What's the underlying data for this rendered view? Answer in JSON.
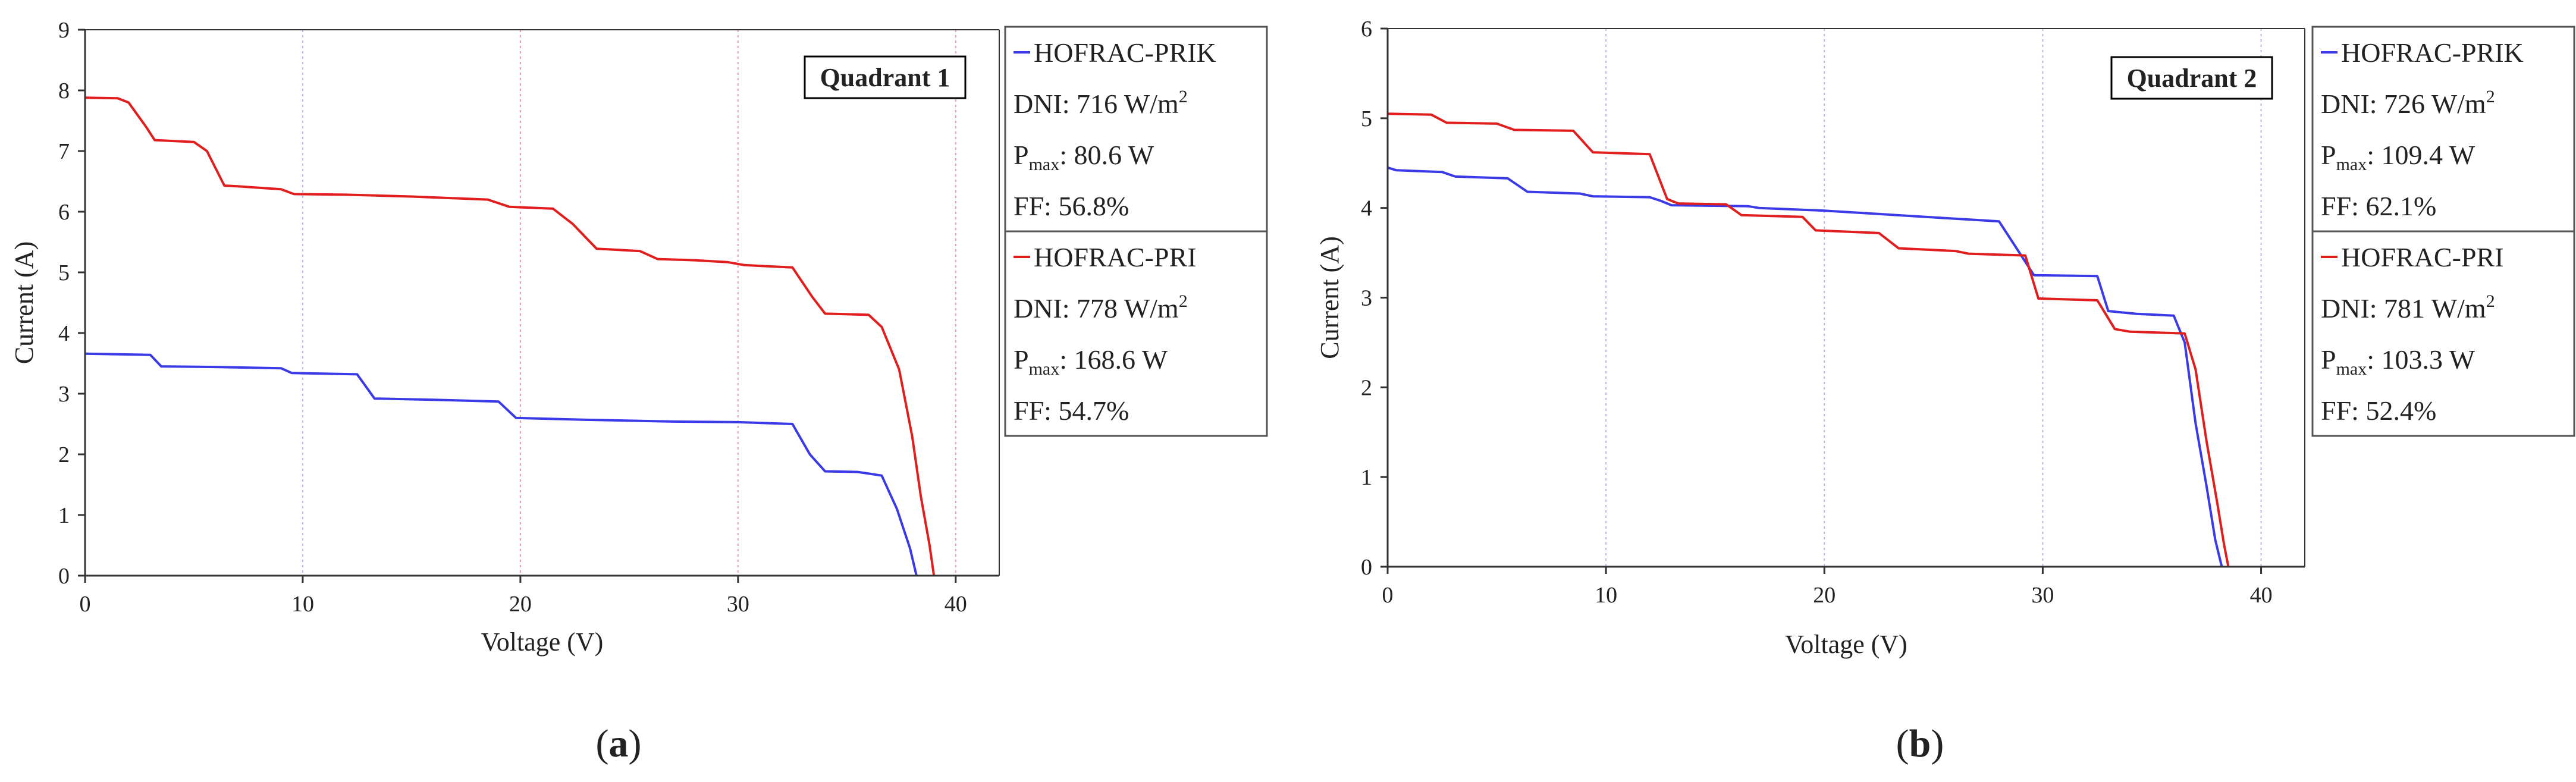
{
  "colors": {
    "prik": "#3a3ae6",
    "pri": "#e01e1e",
    "grid_prik": "#b9b9e8",
    "grid_pri": "#e89c9c",
    "axis": "#333333"
  },
  "chart_data": [
    {
      "type": "line",
      "panel": "a",
      "caption": {
        "open": "(",
        "letter": "a",
        "close": ")"
      },
      "quadrant_label": "Quadrant 1",
      "xlabel": "Voltage (V)",
      "ylabel": "Current (A)",
      "xlim": [
        0,
        42
      ],
      "ylim": [
        0,
        9
      ],
      "xticks": [
        "0",
        "10",
        "20",
        "30",
        "40"
      ],
      "xtick_values": [
        0,
        10,
        20,
        30,
        40
      ],
      "yticks": [
        "0",
        "1",
        "2",
        "3",
        "4",
        "5",
        "6",
        "7",
        "8",
        "9"
      ],
      "ytick_values": [
        0,
        1,
        2,
        3,
        4,
        5,
        6,
        7,
        8,
        9
      ],
      "grid_x": [
        {
          "x": 10,
          "color": "prik"
        },
        {
          "x": 20,
          "color": "pri"
        },
        {
          "x": 30,
          "color": "pri"
        },
        {
          "x": 40,
          "color": "pri"
        }
      ],
      "legend": [
        {
          "series": "HOFRAC-PRIK",
          "dni": "DNI: 716 W/m",
          "dni_sup": "2",
          "pmax_label": "P",
          "pmax_sub": "max",
          "pmax_value": ": 80.6 W",
          "ff": "FF: 56.8%"
        },
        {
          "series": "HOFRAC-PRI",
          "dni": "DNI: 778 W/m",
          "dni_sup": "2",
          "pmax_label": "P",
          "pmax_sub": "max",
          "pmax_value": ": 168.6 W",
          "ff": "FF: 54.7%"
        }
      ],
      "series": [
        {
          "name": "HOFRAC-PRIK",
          "color": "prik",
          "x": [
            0,
            3.0,
            3.5,
            6,
            9.0,
            9.5,
            12.5,
            13.3,
            16,
            19.0,
            19.8,
            23,
            27,
            30,
            32.5,
            33.3,
            34,
            35.5,
            36.6,
            37.3,
            37.9,
            38.2
          ],
          "y": [
            3.66,
            3.64,
            3.45,
            3.44,
            3.42,
            3.34,
            3.32,
            2.92,
            2.9,
            2.87,
            2.6,
            2.57,
            2.54,
            2.53,
            2.5,
            2.0,
            1.72,
            1.71,
            1.65,
            1.1,
            0.45,
            0
          ]
        },
        {
          "name": "HOFRAC-PRI",
          "color": "pri",
          "x": [
            0,
            1.5,
            2.0,
            2.8,
            3.2,
            5.0,
            5.6,
            6.4,
            7,
            9.0,
            9.6,
            12,
            15,
            18.5,
            19.5,
            21.5,
            22.4,
            23.5,
            25.5,
            26.3,
            28,
            29.5,
            30.3,
            32.5,
            33.4,
            34,
            36,
            36.6,
            37.4,
            38.0,
            38.4,
            38.8,
            39.0
          ],
          "y": [
            7.88,
            7.87,
            7.8,
            7.4,
            7.18,
            7.15,
            7.0,
            6.43,
            6.42,
            6.37,
            6.29,
            6.28,
            6.25,
            6.2,
            6.08,
            6.05,
            5.8,
            5.39,
            5.35,
            5.22,
            5.2,
            5.17,
            5.12,
            5.08,
            4.6,
            4.32,
            4.3,
            4.1,
            3.4,
            2.3,
            1.3,
            0.5,
            0
          ]
        }
      ]
    },
    {
      "type": "line",
      "panel": "b",
      "caption": {
        "open": "(",
        "letter": "b",
        "close": ")"
      },
      "quadrant_label": "Quadrant 2",
      "xlabel": "Voltage (V)",
      "ylabel": "Current (A)",
      "xlim": [
        0,
        42
      ],
      "ylim": [
        0,
        6
      ],
      "xticks": [
        "0",
        "10",
        "20",
        "30",
        "40"
      ],
      "xtick_values": [
        0,
        10,
        20,
        30,
        40
      ],
      "yticks": [
        "0",
        "1",
        "2",
        "3",
        "4",
        "5",
        "6"
      ],
      "ytick_values": [
        0,
        1,
        2,
        3,
        4,
        5,
        6
      ],
      "grid_x": [
        {
          "x": 10,
          "color": "prik"
        },
        {
          "x": 20,
          "color": "prik"
        },
        {
          "x": 30,
          "color": "prik"
        },
        {
          "x": 40,
          "color": "prik"
        }
      ],
      "legend": [
        {
          "series": "HOFRAC-PRIK",
          "dni": "DNI: 726 W/m",
          "dni_sup": "2",
          "pmax_label": "P",
          "pmax_sub": "max",
          "pmax_value": ": 109.4 W",
          "ff": "FF: 62.1%"
        },
        {
          "series": "HOFRAC-PRI",
          "dni": "DNI: 781 W/m",
          "dni_sup": "2",
          "pmax_label": "P",
          "pmax_sub": "max",
          "pmax_value": ": 103.3 W",
          "ff": "FF: 52.4%"
        }
      ],
      "series": [
        {
          "name": "HOFRAC-PRIK",
          "color": "prik",
          "x": [
            0,
            0.4,
            2.5,
            3.1,
            5.5,
            6.4,
            8.8,
            9.4,
            12,
            12.5,
            13.0,
            16.5,
            17,
            20,
            28,
            28.8,
            29.6,
            32.5,
            33.0,
            34.3,
            36,
            36.5,
            37.0,
            37.5,
            37.9,
            38.2
          ],
          "y": [
            4.45,
            4.42,
            4.4,
            4.35,
            4.33,
            4.18,
            4.16,
            4.13,
            4.12,
            4.08,
            4.03,
            4.02,
            4.0,
            3.97,
            3.85,
            3.55,
            3.25,
            3.24,
            2.85,
            2.82,
            2.8,
            2.5,
            1.6,
            0.9,
            0.3,
            0
          ]
        },
        {
          "name": "HOFRAC-PRI",
          "color": "pri",
          "x": [
            0,
            2,
            2.7,
            5.0,
            5.8,
            8.5,
            9.4,
            12,
            12.8,
            13.3,
            15.5,
            16.2,
            19,
            19.6,
            22.5,
            23.4,
            26,
            26.6,
            29.2,
            29.8,
            32.5,
            33.3,
            34.0,
            36.5,
            37.0,
            37.5,
            38.0,
            38.3,
            38.5
          ],
          "y": [
            5.05,
            5.04,
            4.95,
            4.94,
            4.87,
            4.86,
            4.62,
            4.6,
            4.1,
            4.05,
            4.04,
            3.92,
            3.9,
            3.75,
            3.72,
            3.55,
            3.52,
            3.49,
            3.47,
            2.99,
            2.97,
            2.65,
            2.62,
            2.6,
            2.2,
            1.4,
            0.7,
            0.25,
            0
          ]
        }
      ]
    }
  ]
}
